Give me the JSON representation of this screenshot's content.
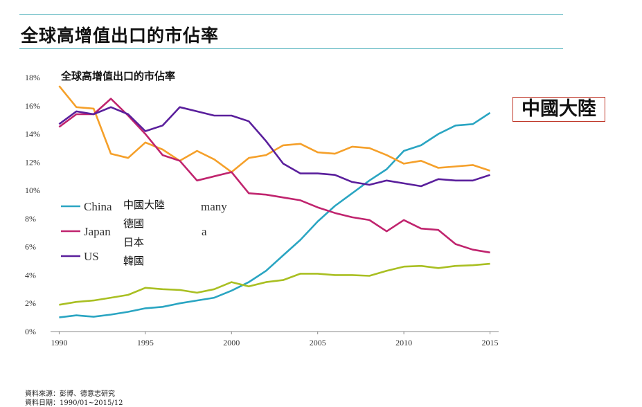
{
  "page": {
    "title": "全球高增值出口的市佔率",
    "highlight": "中國大陸",
    "source_line1": "資料來源：彭博、德意志研究",
    "source_line2": "資料日期：1990/01~2015/12"
  },
  "colors": {
    "rule": "#3fa9b5",
    "China": "#2aa5c2",
    "Germany": "#f5a02a",
    "Japan": "#c0246e",
    "Korea": "#a9bf22",
    "US": "#5a1f9c"
  },
  "chart_data": {
    "type": "line",
    "title": "全球高增值出口的市佔率",
    "xlabel": "",
    "ylabel": "",
    "xlim": [
      1989.5,
      2015.5
    ],
    "ylim": [
      0,
      18
    ],
    "x_ticks": [
      1990,
      1995,
      2000,
      2005,
      2010,
      2015
    ],
    "y_ticks": [
      "0%",
      "2%",
      "4%",
      "6%",
      "8%",
      "10%",
      "12%",
      "14%",
      "16%",
      "18%"
    ],
    "grid": false,
    "legend_placement": "middle-left",
    "legend_visible": [
      {
        "label": "China",
        "series": "China"
      },
      {
        "label": "Japan",
        "series": "Japan"
      },
      {
        "label": "US",
        "series": "US"
      }
    ],
    "legend_partial_text": [
      "many",
      "a"
    ],
    "legend_overlay": [
      "中國大陸",
      "德國",
      "日本",
      "韓國"
    ],
    "x": [
      1990,
      1991,
      1992,
      1993,
      1994,
      1995,
      1996,
      1997,
      1998,
      1999,
      2000,
      2001,
      2002,
      2003,
      2004,
      2005,
      2006,
      2007,
      2008,
      2009,
      2010,
      2011,
      2012,
      2013,
      2014,
      2015
    ],
    "series": [
      {
        "name": "China",
        "values": [
          1.0,
          1.15,
          1.05,
          1.2,
          1.4,
          1.65,
          1.75,
          2.0,
          2.2,
          2.4,
          2.9,
          3.5,
          4.3,
          5.4,
          6.5,
          7.8,
          8.9,
          9.8,
          10.7,
          11.5,
          12.8,
          13.2,
          14.0,
          14.6,
          14.7,
          15.5
        ]
      },
      {
        "name": "Germany",
        "values": [
          17.4,
          15.9,
          15.8,
          12.6,
          12.3,
          13.4,
          12.9,
          12.1,
          12.8,
          12.2,
          11.3,
          12.3,
          12.5,
          13.2,
          13.3,
          12.7,
          12.6,
          13.1,
          13.0,
          12.5,
          11.9,
          12.1,
          11.6,
          11.7,
          11.8,
          11.4
        ]
      },
      {
        "name": "Japan",
        "values": [
          14.5,
          15.4,
          15.4,
          16.5,
          15.3,
          14.0,
          12.5,
          12.1,
          10.7,
          11.0,
          11.3,
          9.8,
          9.7,
          9.5,
          9.3,
          8.8,
          8.4,
          8.1,
          7.9,
          7.1,
          7.9,
          7.3,
          7.2,
          6.2,
          5.8,
          5.6
        ]
      },
      {
        "name": "Korea",
        "values": [
          1.9,
          2.1,
          2.2,
          2.4,
          2.6,
          3.1,
          3.0,
          2.95,
          2.75,
          3.0,
          3.5,
          3.2,
          3.5,
          3.65,
          4.1,
          4.1,
          4.0,
          4.0,
          3.95,
          4.3,
          4.6,
          4.65,
          4.5,
          4.65,
          4.7,
          4.8
        ]
      },
      {
        "name": "US",
        "values": [
          14.7,
          15.6,
          15.4,
          15.9,
          15.4,
          14.2,
          14.6,
          15.9,
          15.6,
          15.3,
          15.3,
          14.9,
          13.5,
          11.9,
          11.2,
          11.2,
          11.1,
          10.6,
          10.4,
          10.7,
          10.5,
          10.3,
          10.8,
          10.7,
          10.7,
          11.1
        ]
      }
    ]
  }
}
